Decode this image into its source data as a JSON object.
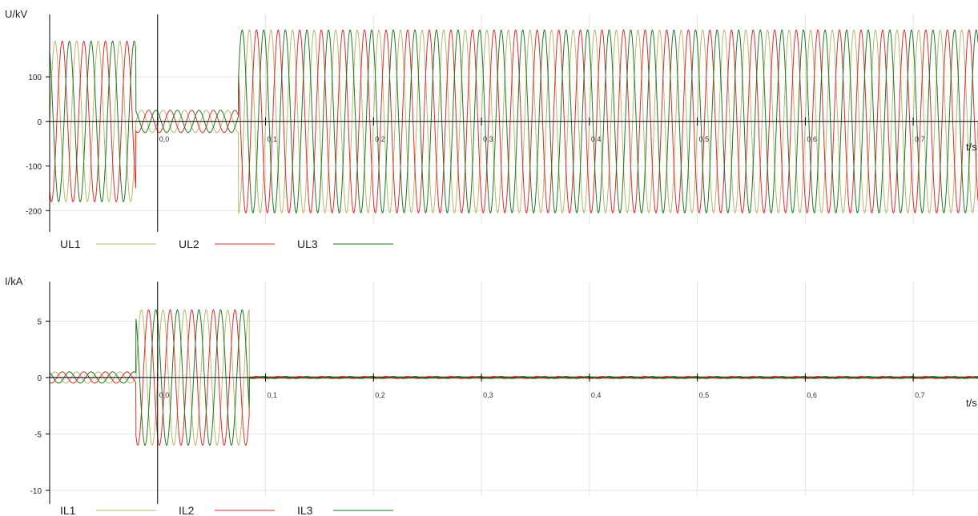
{
  "chart_data": [
    {
      "type": "line",
      "ylabel": "U/kV",
      "xlabel": "t/s",
      "x_ticks": [
        "0,0",
        "0,1",
        "0,2",
        "0,3",
        "0,4",
        "0,5",
        "0,6",
        "0,7"
      ],
      "y_ticks": [
        100,
        0,
        -100,
        -200
      ],
      "xlim": [
        -0.1,
        0.76
      ],
      "ylim": [
        -230,
        240
      ],
      "grid": true,
      "legend_position": "bottom-left",
      "signal": {
        "frequency_hz": 50,
        "segments": [
          {
            "t_start": -0.1,
            "t_end": -0.02,
            "amplitude": 180
          },
          {
            "t_start": -0.02,
            "t_end": 0.075,
            "amplitude": 25
          },
          {
            "t_start": 0.075,
            "t_end": 0.76,
            "amplitude": 205
          }
        ]
      },
      "series": [
        {
          "name": "UL1",
          "color": "#b5b96a",
          "phase_deg": 0
        },
        {
          "name": "UL2",
          "color": "#e8282b",
          "phase_deg": -120
        },
        {
          "name": "UL3",
          "color": "#1f7a1f",
          "phase_deg": 120
        }
      ]
    },
    {
      "type": "line",
      "ylabel": "I/kA",
      "xlabel": "t/s",
      "x_ticks": [
        "0,0",
        "0,1",
        "0,2",
        "0,3",
        "0,4",
        "0,5",
        "0,6",
        "0,7"
      ],
      "y_ticks": [
        5,
        0,
        -5,
        -10
      ],
      "xlim": [
        -0.1,
        0.76
      ],
      "ylim": [
        -10.5,
        8.5
      ],
      "grid": true,
      "legend_position": "bottom-left",
      "signal": {
        "frequency_hz": 50,
        "segments": [
          {
            "t_start": -0.1,
            "t_end": -0.02,
            "amplitude": 0.5
          },
          {
            "t_start": -0.02,
            "t_end": 0.085,
            "amplitude": 6
          },
          {
            "t_start": 0.085,
            "t_end": 0.76,
            "amplitude": 0.1
          }
        ]
      },
      "series": [
        {
          "name": "IL1",
          "color": "#b5b96a",
          "phase_deg": 0
        },
        {
          "name": "IL2",
          "color": "#e8282b",
          "phase_deg": -120
        },
        {
          "name": "IL3",
          "color": "#1f7a1f",
          "phase_deg": 120
        }
      ]
    }
  ]
}
